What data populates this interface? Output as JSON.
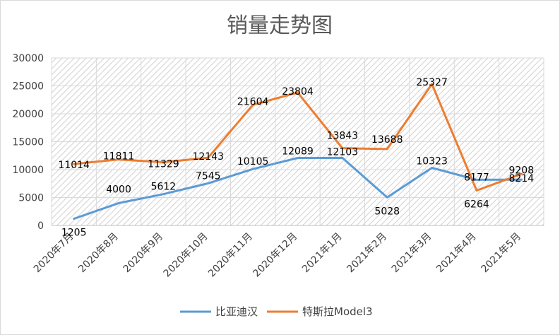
{
  "chart_data": {
    "type": "line",
    "title": "销量走势图",
    "xlabel": "",
    "ylabel": "",
    "categories": [
      "2020年7月",
      "2020年8月",
      "2020年9月",
      "2020年10月",
      "2020年11月",
      "2020年12月",
      "2021年1月",
      "2021年2月",
      "2021年3月",
      "2021年4月",
      "2021年5月"
    ],
    "ylim": [
      0,
      30000
    ],
    "yticks": [
      0,
      5000,
      10000,
      15000,
      20000,
      25000,
      30000
    ],
    "grid": true,
    "legend_position": "bottom",
    "series": [
      {
        "name": "比亚迪汉",
        "color": "#5B9BD5",
        "values": [
          1205,
          4000,
          5612,
          7545,
          10105,
          12089,
          12103,
          5028,
          10323,
          8177,
          8214
        ]
      },
      {
        "name": "特斯拉Model3",
        "color": "#ED7D31",
        "values": [
          11014,
          11811,
          11329,
          12143,
          21604,
          23804,
          13843,
          13688,
          25327,
          6264,
          9208
        ]
      }
    ]
  }
}
